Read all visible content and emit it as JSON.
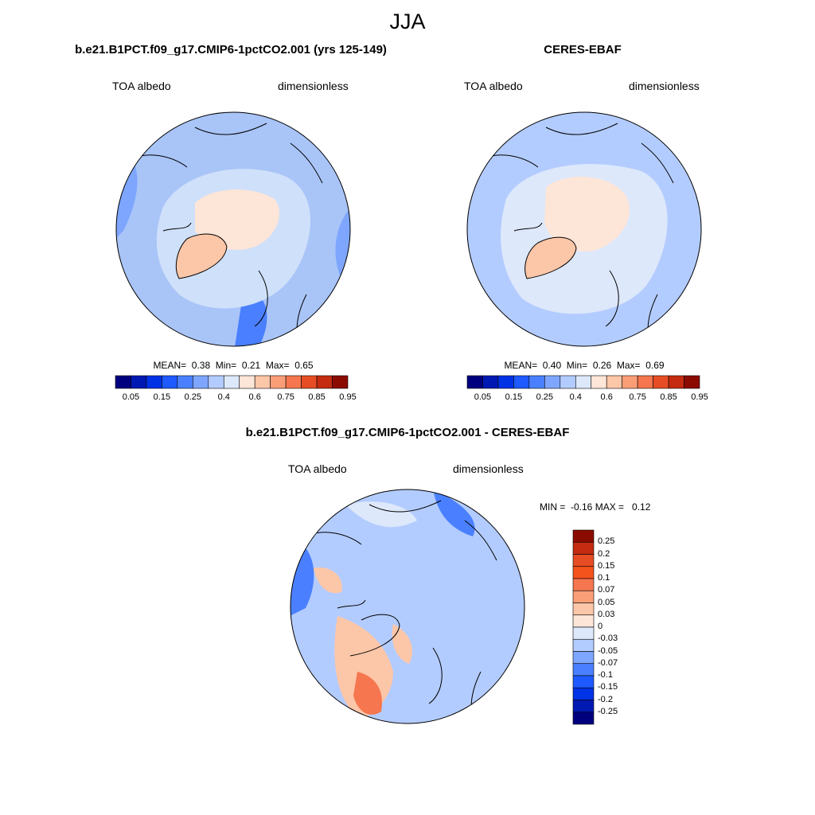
{
  "figure": {
    "title": "JJA"
  },
  "panels": [
    {
      "id": "model",
      "title": "b.e21.B1PCT.f09_g17.CMIP6-1pctCO2.001 (yrs 125-149)",
      "left_label": "TOA albedo",
      "right_label": "dimensionless",
      "stats": "MEAN=  0.38  Min=  0.21  Max=  0.65",
      "mean": 0.38,
      "min": 0.21,
      "max": 0.65
    },
    {
      "id": "obs",
      "title": "CERES-EBAF",
      "left_label": "TOA albedo",
      "right_label": "dimensionless",
      "stats": "MEAN=  0.40  Min=  0.26  Max=  0.69",
      "mean": 0.4,
      "min": 0.26,
      "max": 0.69
    },
    {
      "id": "diff",
      "title": "b.e21.B1PCT.f09_g17.CMIP6-1pctCO2.001 - CERES-EBAF",
      "left_label": "TOA albedo",
      "right_label": "dimensionless",
      "stats": "MIN =  -0.16 MAX =   0.12",
      "min": -0.16,
      "max": 0.12
    }
  ],
  "colorbar_abs": {
    "labels": [
      "0.05",
      "0.15",
      "0.25",
      "0.4",
      "0.6",
      "0.75",
      "0.85",
      "0.95"
    ],
    "colors": [
      "#00007f",
      "#0019b3",
      "#0032e6",
      "#1e5aff",
      "#4a80ff",
      "#7ea6ff",
      "#b3ccff",
      "#dde8fb",
      "#fde5d8",
      "#fcc6a8",
      "#fa9e78",
      "#f5764f",
      "#e64d24",
      "#c42b10",
      "#8b0b00"
    ]
  },
  "colorbar_diff": {
    "labels": [
      "0.25",
      "0.2",
      "0.15",
      "0.1",
      "0.07",
      "0.05",
      "0.03",
      "0",
      "-0.03",
      "-0.05",
      "-0.07",
      "-0.1",
      "-0.15",
      "-0.2",
      "-0.25"
    ],
    "colors": [
      "#8b0b00",
      "#c42b10",
      "#e64d24",
      "#f5531c",
      "#f5764f",
      "#fa9e78",
      "#fcc6a8",
      "#fde5d8",
      "#dde8fb",
      "#b3ccff",
      "#7ea6ff",
      "#4a80ff",
      "#1e5aff",
      "#0032e6",
      "#0019b3",
      "#00007f"
    ]
  },
  "colors": {
    "ocean_mid": "#a9c4f7",
    "ocean_light": "#cfe0fa",
    "ocean_dark": "#7ea6ff",
    "ice": "#fde5d8",
    "greenland": "#fcc6a8",
    "diff_base": "#b3ccff",
    "diff_pos": "#fcc6a8",
    "diff_pos_strong": "#f5764f",
    "diff_neg": "#4a80ff"
  }
}
